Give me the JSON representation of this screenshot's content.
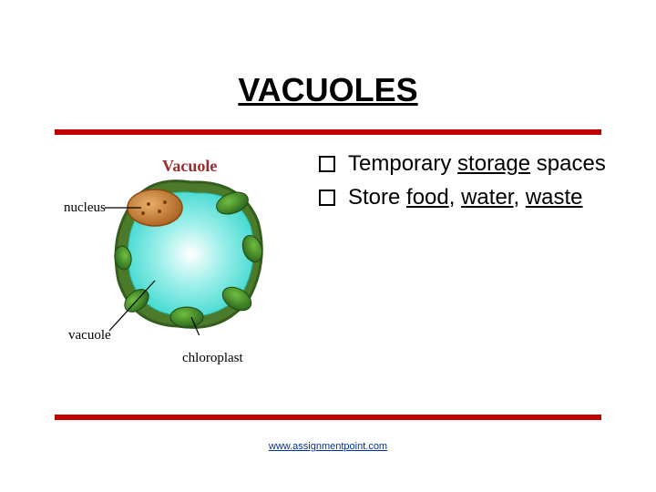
{
  "slide": {
    "title": "VACUOLES",
    "title_fontsize": 36,
    "title_color": "#000000",
    "accent_bar_color": "#c00000",
    "background_color": "#ffffff"
  },
  "diagram": {
    "title": "Vacuole",
    "title_color": "#9a2d2d",
    "title_fontsize": 18,
    "labels": {
      "nucleus": "nucleus",
      "vacuole": "vacuole",
      "chloroplast": "chloroplast"
    },
    "label_fontsize": 15,
    "label_color": "#000000",
    "colors": {
      "cell_wall_outer": "#355e1e",
      "cell_wall_fill": "#4a7a2a",
      "chloroplast_fill": "#2e6b1f",
      "chloroplast_highlight": "#6fbf3f",
      "vacuole_center": "#ffffff",
      "vacuole_mid": "#9ff0ea",
      "vacuole_outer": "#3fd9d0",
      "nucleus_fill": "#d98b3a",
      "nucleus_dark": "#a65a1a",
      "leader_line": "#000000"
    }
  },
  "bullets": {
    "fontsize": 24,
    "text_color": "#000000",
    "box_border_color": "#000000",
    "items": [
      {
        "parts": [
          {
            "text": "Temporary ",
            "underline": false
          },
          {
            "text": "storage",
            "underline": true
          },
          {
            "text": " spaces",
            "underline": false
          }
        ]
      },
      {
        "parts": [
          {
            "text": "Store ",
            "underline": false
          },
          {
            "text": "food",
            "underline": true
          },
          {
            "text": ", ",
            "underline": false
          },
          {
            "text": "water",
            "underline": true
          },
          {
            "text": ", ",
            "underline": false
          },
          {
            "text": "waste",
            "underline": true
          }
        ]
      }
    ]
  },
  "footer": {
    "link_text": "www.assignmentpoint.com",
    "link_color": "#003399",
    "fontsize": 11
  }
}
